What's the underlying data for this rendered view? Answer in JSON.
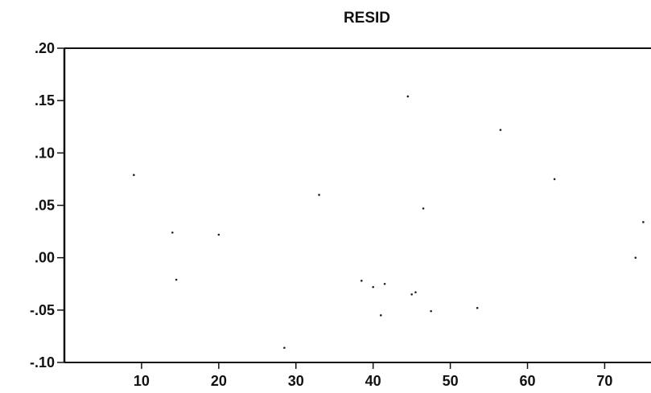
{
  "chart_data": {
    "type": "scatter",
    "title": "RESID",
    "xlabel": "",
    "ylabel": "",
    "xlim": [
      0,
      76
    ],
    "ylim": [
      -0.1,
      0.2
    ],
    "xticks": [
      10,
      20,
      30,
      40,
      50,
      60,
      70
    ],
    "xtick_labels": [
      "10",
      "20",
      "30",
      "40",
      "50",
      "60",
      "70"
    ],
    "yticks": [
      0.2,
      0.15,
      0.1,
      0.05,
      0.0,
      -0.05,
      -0.1
    ],
    "ytick_labels": [
      ".20",
      ".15",
      ".10",
      ".05",
      ".00",
      "-.05",
      "-.10"
    ],
    "grid": false,
    "point_color": "#222222",
    "points": [
      {
        "x": 9,
        "y": 0.079
      },
      {
        "x": 14,
        "y": 0.024
      },
      {
        "x": 14.5,
        "y": -0.021
      },
      {
        "x": 20,
        "y": 0.022
      },
      {
        "x": 28.5,
        "y": -0.086
      },
      {
        "x": 33,
        "y": 0.06
      },
      {
        "x": 38.5,
        "y": -0.022
      },
      {
        "x": 40,
        "y": -0.028
      },
      {
        "x": 41,
        "y": -0.055
      },
      {
        "x": 41.5,
        "y": -0.025
      },
      {
        "x": 44.5,
        "y": 0.154
      },
      {
        "x": 45,
        "y": -0.035
      },
      {
        "x": 45.5,
        "y": -0.033
      },
      {
        "x": 46.5,
        "y": 0.047
      },
      {
        "x": 47.5,
        "y": -0.051
      },
      {
        "x": 53.5,
        "y": -0.048
      },
      {
        "x": 56.5,
        "y": 0.122
      },
      {
        "x": 63.5,
        "y": 0.075
      },
      {
        "x": 74,
        "y": 0.0
      },
      {
        "x": 75,
        "y": 0.034
      }
    ]
  }
}
